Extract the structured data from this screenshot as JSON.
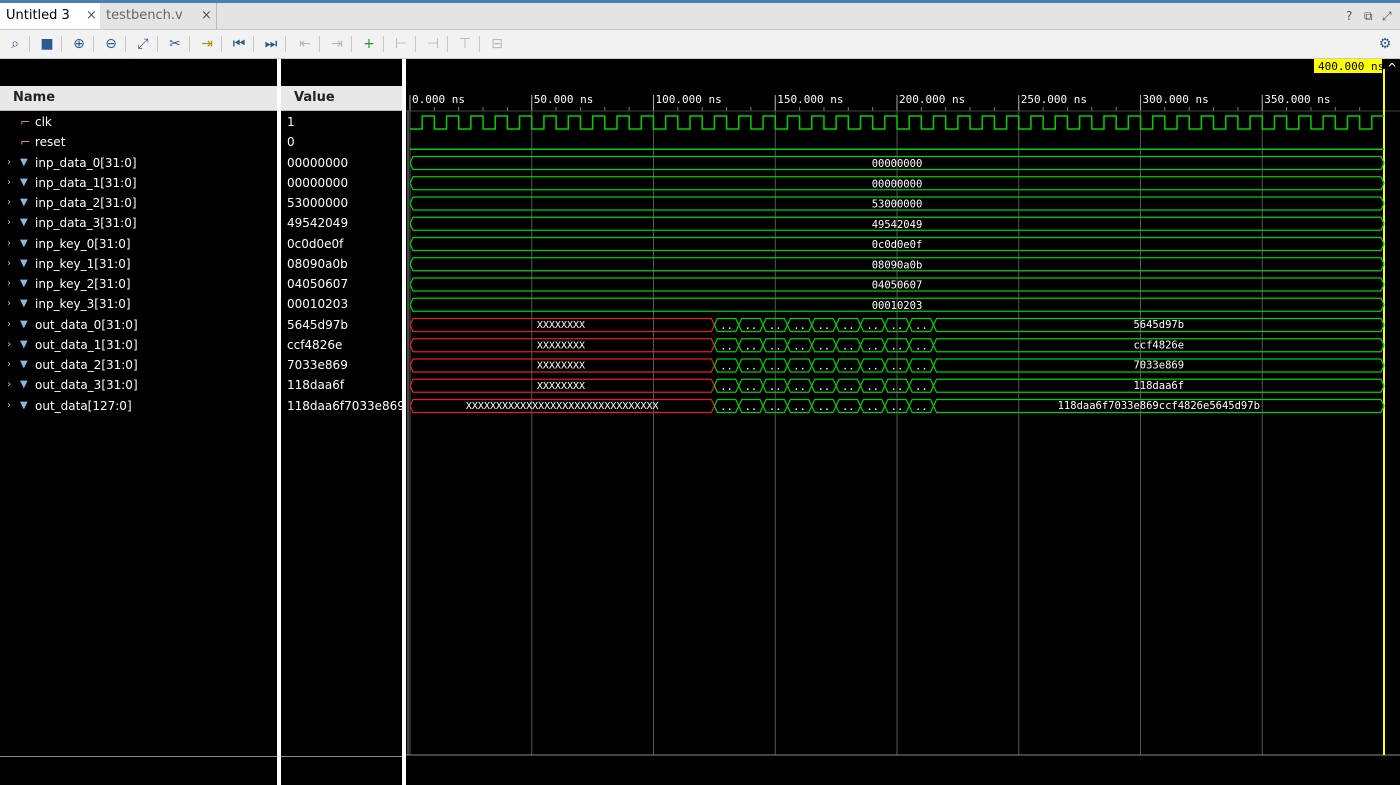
{
  "tabs": [
    {
      "label": "Untitled 3",
      "close": "×"
    },
    {
      "label": "testbench.v",
      "close": "×"
    }
  ],
  "window_controls": [
    "?",
    "⧉",
    "⤢"
  ],
  "toolbar_icons": [
    "search-icon",
    "save-icon",
    "zoom-in-icon",
    "zoom-out-icon",
    "zoom-fit-icon",
    "cursor-icon",
    "go-to-cursor-icon",
    "go-to-start-icon",
    "go-to-end-icon",
    "prev-transition-icon",
    "next-transition-icon",
    "add-marker-icon",
    "prev-marker-icon",
    "next-marker-icon",
    "swap-cursors-icon",
    "snap-icon",
    "settings-icon"
  ],
  "columns": {
    "name": "Name",
    "value": "Value"
  },
  "cursor_time": "400.000 ns",
  "time_labels": [
    "0.000 ns",
    "50.000 ns",
    "100.000 ns",
    "150.000 ns",
    "200.000 ns",
    "250.000 ns",
    "300.000 ns",
    "350.000 ns"
  ],
  "signals": [
    {
      "name": "clk",
      "value": "1",
      "kind": "bit"
    },
    {
      "name": "reset",
      "value": "0",
      "kind": "bit"
    },
    {
      "name": "inp_data_0[31:0]",
      "value": "00000000",
      "kind": "bus"
    },
    {
      "name": "inp_data_1[31:0]",
      "value": "00000000",
      "kind": "bus"
    },
    {
      "name": "inp_data_2[31:0]",
      "value": "53000000",
      "kind": "bus"
    },
    {
      "name": "inp_data_3[31:0]",
      "value": "49542049",
      "kind": "bus"
    },
    {
      "name": "inp_key_0[31:0]",
      "value": "0c0d0e0f",
      "kind": "bus"
    },
    {
      "name": "inp_key_1[31:0]",
      "value": "08090a0b",
      "kind": "bus"
    },
    {
      "name": "inp_key_2[31:0]",
      "value": "04050607",
      "kind": "bus"
    },
    {
      "name": "inp_key_3[31:0]",
      "value": "00010203",
      "kind": "bus"
    },
    {
      "name": "out_data_0[31:0]",
      "value": "5645d97b",
      "kind": "bus"
    },
    {
      "name": "out_data_1[31:0]",
      "value": "ccf4826e",
      "kind": "bus"
    },
    {
      "name": "out_data_2[31:0]",
      "value": "7033e869",
      "kind": "bus"
    },
    {
      "name": "out_data_3[31:0]",
      "value": "118daa6f",
      "kind": "bus"
    },
    {
      "name": "out_data[127:0]",
      "value": "118daa6f7033e869",
      "kind": "bus"
    }
  ],
  "waves": {
    "inputs": [
      "00000000",
      "00000000",
      "53000000",
      "49542049",
      "0c0d0e0f",
      "08090a0b",
      "04050607",
      "00010203"
    ],
    "outputs": [
      {
        "unknown": "XXXXXXXX",
        "final": "5645d97b"
      },
      {
        "unknown": "XXXXXXXX",
        "final": "ccf4826e"
      },
      {
        "unknown": "XXXXXXXX",
        "final": "7033e869"
      },
      {
        "unknown": "XXXXXXXX",
        "final": "118daa6f"
      },
      {
        "unknown": "XXXXXXXXXXXXXXXXXXXXXXXXXXXXXXXX",
        "final": "118daa6f7033e869ccf4826e5645d97b"
      }
    ],
    "intermediate_label": "..",
    "time_range_ns": [
      0,
      400
    ],
    "clock_period_ns": 10,
    "unknown_until_ns": 125,
    "settle_ns": 215,
    "colors": {
      "signal": "#00d000",
      "unknown": "#e02020",
      "grid": "#555555",
      "cursor": "#ffff00",
      "text": "#ffffff"
    }
  }
}
